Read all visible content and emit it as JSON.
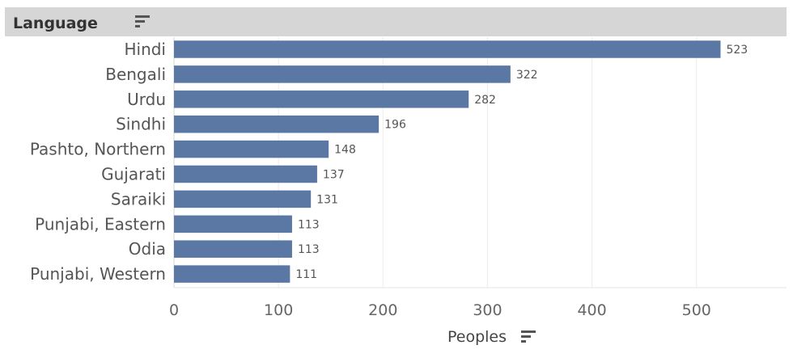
{
  "header": {
    "title": "Language"
  },
  "colors": {
    "bar": "#5a78a3",
    "grid": "#ececec",
    "header_bg": "#d6d6d6"
  },
  "icons": {
    "header_sort": "sort-descending-icon",
    "axis_sort": "sort-descending-icon"
  },
  "chart_data": {
    "type": "bar",
    "orientation": "horizontal",
    "categories": [
      "Hindi",
      "Bengali",
      "Urdu",
      "Sindhi",
      "Pashto, Northern",
      "Gujarati",
      "Saraiki",
      "Punjabi, Eastern",
      "Odia",
      "Punjabi, Western"
    ],
    "values": [
      523,
      322,
      282,
      196,
      148,
      137,
      131,
      113,
      113,
      111
    ],
    "xlabel": "Peoples",
    "ylabel": "Language",
    "xlim": [
      0,
      580
    ],
    "xticks": [
      0,
      100,
      200,
      300,
      400,
      500
    ],
    "grid": true,
    "data_labels": true
  }
}
